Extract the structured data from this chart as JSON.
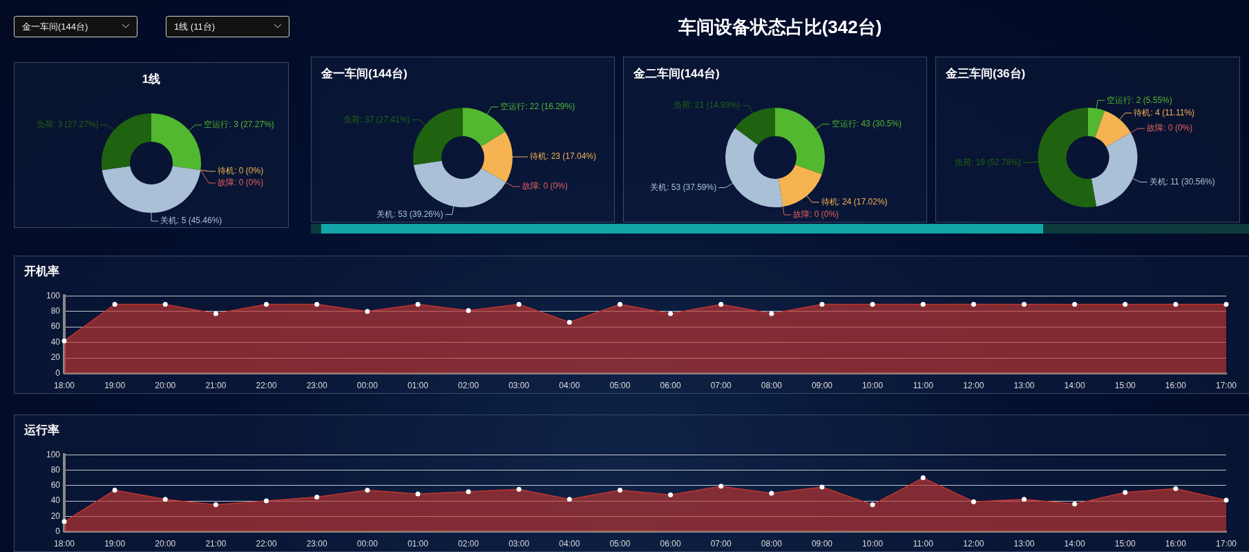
{
  "chart_data": [
    {
      "type": "other",
      "title": "车间设备状态占比(342台)",
      "annotations": [
        "金一车间(144台)",
        "1线 (11台)"
      ]
    },
    {
      "type": "donut",
      "title": "1线",
      "categories": [
        "空运行",
        "待机",
        "故障",
        "关机",
        "负荷"
      ],
      "values": [
        3,
        0,
        0,
        5,
        3
      ],
      "colors": [
        "#52b830",
        "#f5b352",
        "#e0625e",
        "#a9c0d6",
        "#1f6310"
      ],
      "value_labels": [
        ": 3 (27.27%)",
        ": 0 (0%)",
        ": 0 (0%)",
        ": 5 (45.46%)",
        ": 3 (27.27%)"
      ]
    },
    {
      "type": "donut",
      "title": "金一车间(144台)",
      "categories": [
        "空运行",
        "待机",
        "故障",
        "关机",
        "负荷"
      ],
      "values": [
        22,
        23,
        0,
        53,
        37
      ],
      "colors": [
        "#52b830",
        "#f5b352",
        "#e0625e",
        "#a9c0d6",
        "#1f6310"
      ],
      "value_labels": [
        ": 22 (16.29%)",
        ": 23 (17.04%)",
        ": 0 (0%)",
        ": 53 (39.26%)",
        ": 37 (27.41%)"
      ]
    },
    {
      "type": "donut",
      "title": "金二车间(144台)",
      "categories": [
        "空运行",
        "待机",
        "故障",
        "关机",
        "负荷"
      ],
      "values": [
        43,
        24,
        0,
        53,
        21
      ],
      "colors": [
        "#52b830",
        "#f5b352",
        "#e0625e",
        "#a9c0d6",
        "#1f6310"
      ],
      "value_labels": [
        ": 43 (30.5%)",
        ": 24 (17.02%)",
        ": 0 (0%)",
        ": 53 (37.59%)",
        ": 21 (14.89%)"
      ]
    },
    {
      "type": "donut",
      "title": "金三车间(36台)",
      "categories": [
        "空运行",
        "待机",
        "故障",
        "关机",
        "负荷"
      ],
      "values": [
        2,
        4,
        0,
        11,
        19
      ],
      "colors": [
        "#52b830",
        "#f5b352",
        "#e0625e",
        "#a9c0d6",
        "#1f6310"
      ],
      "value_labels": [
        ": 2 (5.55%)",
        ": 4 (11.11%)",
        ": 0 (0%)",
        ": 11 (30.56%)",
        ": 19 (52.78%)"
      ]
    },
    {
      "type": "area",
      "title": "开机率",
      "categories": [
        "18:00",
        "19:00",
        "20:00",
        "21:00",
        "22:00",
        "23:00",
        "00:00",
        "01:00",
        "02:00",
        "03:00",
        "04:00",
        "05:00",
        "06:00",
        "07:00",
        "08:00",
        "09:00",
        "10:00",
        "11:00",
        "12:00",
        "13:00",
        "14:00",
        "15:00",
        "16:00",
        "17:00"
      ],
      "series": [
        {
          "color": "#c23531",
          "values": [
            42,
            89,
            89,
            77,
            89,
            89,
            80,
            89,
            81,
            89,
            66,
            89,
            77,
            89,
            77,
            89,
            89,
            89,
            89,
            89,
            89,
            89,
            89,
            89
          ]
        }
      ],
      "ylim": [
        0,
        100
      ],
      "yticks": [
        0,
        20,
        40,
        60,
        80,
        100
      ],
      "grid": "y",
      "marker": "circle"
    },
    {
      "type": "area",
      "title": "运行率",
      "categories": [
        "18:00",
        "19:00",
        "20:00",
        "21:00",
        "22:00",
        "23:00",
        "00:00",
        "01:00",
        "02:00",
        "03:00",
        "04:00",
        "05:00",
        "06:00",
        "07:00",
        "08:00",
        "09:00",
        "10:00",
        "11:00",
        "12:00",
        "13:00",
        "14:00",
        "15:00",
        "16:00",
        "17:00"
      ],
      "series": [
        {
          "color": "#c23531",
          "values": [
            13,
            54,
            42,
            35,
            40,
            45,
            54,
            49,
            52,
            55,
            42,
            54,
            48,
            59,
            50,
            58,
            35,
            70,
            39,
            42,
            36,
            51,
            56,
            41
          ]
        }
      ],
      "ylim": [
        0,
        100
      ],
      "yticks": [
        0,
        20,
        40,
        60,
        80,
        100
      ],
      "grid": "y",
      "marker": "circle"
    }
  ]
}
